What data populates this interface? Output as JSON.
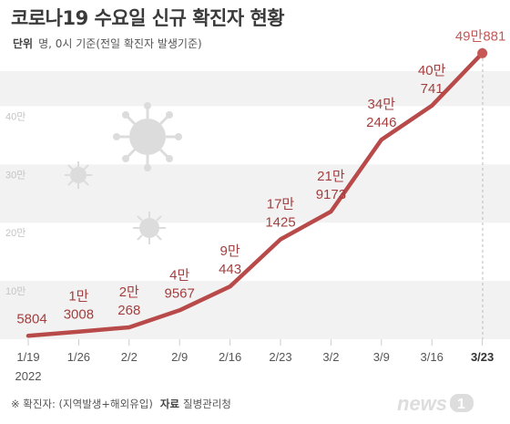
{
  "title": "코로나19 수요일 신규 확진자 현황",
  "unit": {
    "label": "단위",
    "text": "명, 0시 기준(전일 확진자 발생기준)"
  },
  "source": {
    "note": "※ 확진자: (지역발생+해외유입)",
    "label": "자료",
    "text": "질병관리청"
  },
  "logo_text": "news1",
  "year_label": "2022",
  "colors": {
    "line": "#b84a4a",
    "value_label": "#a33f3f",
    "last_label": "#c65757",
    "band": "#f2f2f2",
    "tick": "#cccccc",
    "title": "#3a3a3a"
  },
  "chart_data": {
    "type": "line",
    "title": "코로나19 수요일 신규 확진자 현황",
    "unit": "명",
    "x": [
      "1/19",
      "1/26",
      "2/2",
      "2/9",
      "2/16",
      "2/23",
      "3/2",
      "3/9",
      "3/16",
      "3/23"
    ],
    "y_tick_labels": [
      "10만",
      "20만",
      "30만",
      "40만"
    ],
    "y_ticks": [
      100000,
      200000,
      300000,
      400000
    ],
    "ylim": [
      0,
      500000
    ],
    "grid": false,
    "series": [
      {
        "values": [
          5804,
          13008,
          20268,
          49567,
          90443,
          171425,
          219173,
          342446,
          400741,
          490881
        ],
        "labels": [
          [
            "5804"
          ],
          [
            "1만",
            "3008"
          ],
          [
            "2만",
            "268"
          ],
          [
            "4만",
            "9567"
          ],
          [
            "9만",
            "443"
          ],
          [
            "17만",
            "1425"
          ],
          [
            "21만",
            "9173"
          ],
          [
            "34만",
            "2446"
          ],
          [
            "40만",
            "741"
          ],
          [
            "49만881"
          ]
        ]
      }
    ]
  }
}
